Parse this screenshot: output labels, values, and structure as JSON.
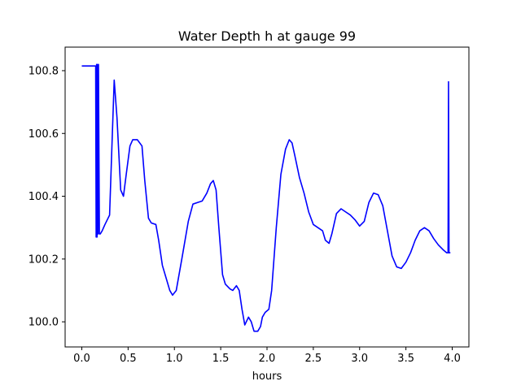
{
  "chart_data": {
    "type": "line",
    "title": "Water Depth h at gauge 99",
    "xlabel": "hours",
    "ylabel": "",
    "xlim": [
      -0.18,
      4.18
    ],
    "ylim": [
      99.92,
      100.875
    ],
    "xticks": [
      {
        "value": 0.0,
        "label": "0.0"
      },
      {
        "value": 0.5,
        "label": "0.5"
      },
      {
        "value": 1.0,
        "label": "1.0"
      },
      {
        "value": 1.5,
        "label": "1.5"
      },
      {
        "value": 2.0,
        "label": "2.0"
      },
      {
        "value": 2.5,
        "label": "2.5"
      },
      {
        "value": 3.0,
        "label": "3.0"
      },
      {
        "value": 3.5,
        "label": "3.5"
      },
      {
        "value": 4.0,
        "label": "4.0"
      }
    ],
    "yticks": [
      {
        "value": 100.0,
        "label": "100.0"
      },
      {
        "value": 100.2,
        "label": "100.2"
      },
      {
        "value": 100.4,
        "label": "100.4"
      },
      {
        "value": 100.6,
        "label": "100.6"
      },
      {
        "value": 100.8,
        "label": "100.8"
      }
    ],
    "grid": false,
    "series": [
      {
        "color": "#0000ff",
        "x": [
          0.0,
          0.14,
          0.15,
          0.155,
          0.16,
          0.165,
          0.17,
          0.175,
          0.18,
          0.19,
          0.2,
          0.22,
          0.25,
          0.3,
          0.33,
          0.35,
          0.38,
          0.42,
          0.45,
          0.48,
          0.52,
          0.55,
          0.6,
          0.65,
          0.68,
          0.72,
          0.75,
          0.8,
          0.83,
          0.87,
          0.9,
          0.95,
          0.98,
          1.02,
          1.08,
          1.15,
          1.2,
          1.25,
          1.3,
          1.35,
          1.39,
          1.42,
          1.45,
          1.48,
          1.52,
          1.55,
          1.6,
          1.63,
          1.67,
          1.7,
          1.73,
          1.76,
          1.8,
          1.83,
          1.86,
          1.9,
          1.93,
          1.95,
          1.98,
          2.02,
          2.05,
          2.1,
          2.15,
          2.2,
          2.24,
          2.27,
          2.3,
          2.35,
          2.4,
          2.45,
          2.5,
          2.55,
          2.6,
          2.63,
          2.67,
          2.7,
          2.75,
          2.8,
          2.85,
          2.9,
          2.95,
          3.0,
          3.05,
          3.1,
          3.15,
          3.2,
          3.25,
          3.3,
          3.35,
          3.4,
          3.45,
          3.5,
          3.55,
          3.6,
          3.65,
          3.7,
          3.75,
          3.8,
          3.85,
          3.9,
          3.94,
          3.955,
          3.96,
          3.965,
          3.97,
          3.98
        ],
        "y": [
          100.815,
          100.815,
          100.815,
          100.27,
          100.82,
          100.27,
          100.82,
          100.28,
          100.82,
          100.28,
          100.28,
          100.29,
          100.31,
          100.34,
          100.6,
          100.77,
          100.65,
          100.42,
          100.4,
          100.47,
          100.56,
          100.58,
          100.58,
          100.56,
          100.45,
          100.33,
          100.315,
          100.31,
          100.26,
          100.18,
          100.15,
          100.1,
          100.085,
          100.1,
          100.2,
          100.32,
          100.375,
          100.38,
          100.385,
          100.41,
          100.44,
          100.45,
          100.42,
          100.3,
          100.15,
          100.12,
          100.105,
          100.1,
          100.115,
          100.1,
          100.04,
          99.99,
          100.015,
          100.0,
          99.97,
          99.97,
          99.985,
          100.015,
          100.03,
          100.04,
          100.1,
          100.3,
          100.47,
          100.55,
          100.58,
          100.57,
          100.53,
          100.46,
          100.41,
          100.35,
          100.31,
          100.3,
          100.29,
          100.26,
          100.25,
          100.28,
          100.345,
          100.36,
          100.35,
          100.34,
          100.325,
          100.305,
          100.32,
          100.38,
          100.41,
          100.405,
          100.37,
          100.29,
          100.21,
          100.175,
          100.17,
          100.19,
          100.22,
          100.26,
          100.29,
          100.3,
          100.29,
          100.265,
          100.245,
          100.23,
          100.22,
          100.22,
          100.765,
          100.22,
          100.22,
          100.22
        ]
      }
    ]
  }
}
